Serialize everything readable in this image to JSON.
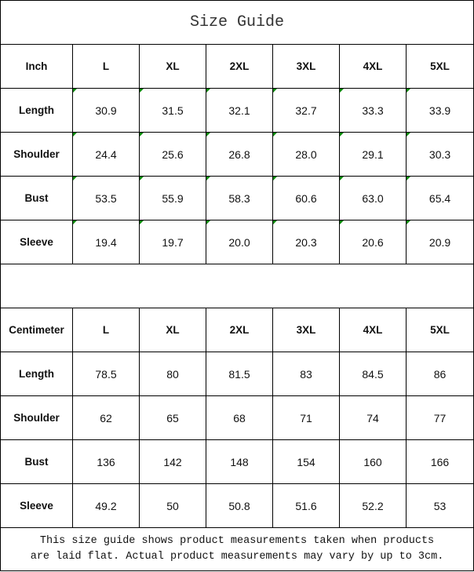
{
  "title": "Size Guide",
  "sizes": [
    "L",
    "XL",
    "2XL",
    "3XL",
    "4XL",
    "5XL"
  ],
  "inch": {
    "unit_label": "Inch",
    "rows": [
      {
        "label": "Length",
        "values": [
          "30.9",
          "31.5",
          "32.1",
          "32.7",
          "33.3",
          "33.9"
        ]
      },
      {
        "label": "Shoulder",
        "values": [
          "24.4",
          "25.6",
          "26.8",
          "28.0",
          "29.1",
          "30.3"
        ]
      },
      {
        "label": "Bust",
        "values": [
          "53.5",
          "55.9",
          "58.3",
          "60.6",
          "63.0",
          "65.4"
        ]
      },
      {
        "label": "Sleeve",
        "values": [
          "19.4",
          "19.7",
          "20.0",
          "20.3",
          "20.6",
          "20.9"
        ]
      }
    ]
  },
  "centimeter": {
    "unit_label": "Centimeter",
    "rows": [
      {
        "label": "Length",
        "values": [
          "78.5",
          "80",
          "81.5",
          "83",
          "84.5",
          "86"
        ]
      },
      {
        "label": "Shoulder",
        "values": [
          "62",
          "65",
          "68",
          "71",
          "74",
          "77"
        ]
      },
      {
        "label": "Bust",
        "values": [
          "136",
          "142",
          "148",
          "154",
          "160",
          "166"
        ]
      },
      {
        "label": "Sleeve",
        "values": [
          "49.2",
          "50",
          "50.8",
          "51.6",
          "52.2",
          "53"
        ]
      }
    ]
  },
  "note_line1": "This size guide shows product measurements taken when products",
  "note_line2": "are laid flat. Actual product measurements may vary by up to 3cm.",
  "colors": {
    "corner_marker": "#0a8a0a",
    "border": "#000000"
  }
}
